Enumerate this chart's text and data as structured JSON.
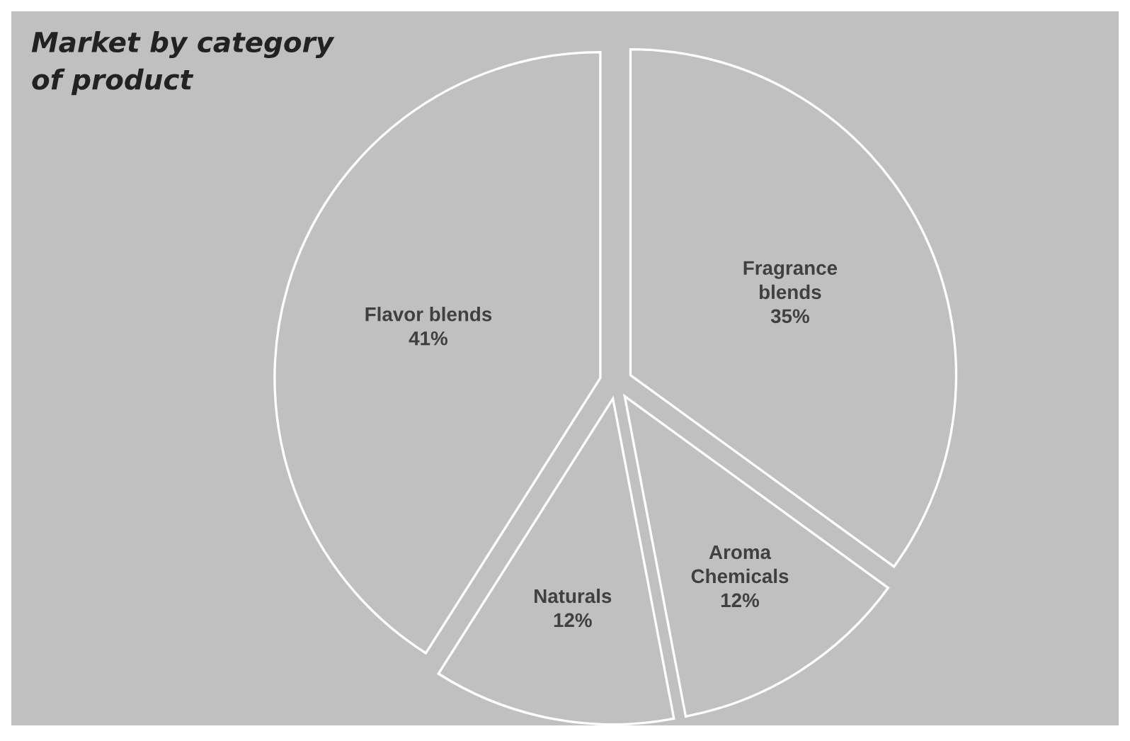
{
  "chart_data": {
    "type": "pie",
    "title": "Market by category\nof product",
    "categories": [
      "Fragrance\nblends",
      "Aroma\nChemicals",
      "Naturals",
      "Flavor blends"
    ],
    "values": [
      35,
      12,
      12,
      41
    ],
    "value_labels": [
      "35%",
      "12%",
      "12%",
      "41%"
    ],
    "colors": [
      "#c0c0c0",
      "#c0c0c0",
      "#c0c0c0",
      "#c0c0c0"
    ]
  }
}
